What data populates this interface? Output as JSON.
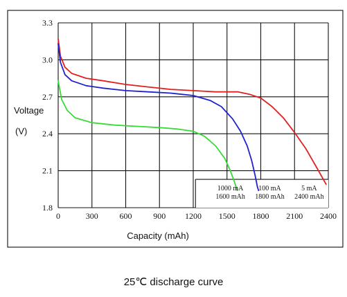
{
  "chart_data": {
    "type": "line",
    "ylabel_line1": "Voltage",
    "ylabel_line2": "(V)",
    "xlabel": "Capacity (mAh)",
    "xlim": [
      0,
      2400
    ],
    "ylim": [
      1.8,
      3.3
    ],
    "x_ticks": [
      0,
      300,
      600,
      900,
      1200,
      1500,
      1800,
      2100,
      2400
    ],
    "y_ticks": [
      "1.8",
      "2.1",
      "2.4",
      "2.7",
      "3.0",
      "3.3"
    ],
    "grid": true,
    "series": [
      {
        "color": "#e02020",
        "x": [
          0,
          20,
          60,
          120,
          250,
          400,
          600,
          800,
          1000,
          1200,
          1400,
          1600,
          1700,
          1800,
          1900,
          2000,
          2100,
          2200,
          2300,
          2380
        ],
        "y": [
          3.17,
          3.03,
          2.94,
          2.89,
          2.85,
          2.83,
          2.8,
          2.78,
          2.76,
          2.75,
          2.74,
          2.74,
          2.72,
          2.69,
          2.62,
          2.53,
          2.41,
          2.28,
          2.12,
          1.99
        ]
      },
      {
        "color": "#2020d0",
        "x": [
          0,
          20,
          60,
          120,
          250,
          400,
          600,
          800,
          1000,
          1200,
          1350,
          1450,
          1550,
          1620,
          1680,
          1720,
          1750,
          1770,
          1780
        ],
        "y": [
          3.13,
          2.98,
          2.88,
          2.83,
          2.79,
          2.77,
          2.75,
          2.74,
          2.73,
          2.71,
          2.67,
          2.62,
          2.52,
          2.42,
          2.3,
          2.18,
          2.06,
          1.97,
          1.94
        ]
      },
      {
        "color": "#33dd33",
        "x": [
          0,
          30,
          80,
          150,
          300,
          500,
          700,
          900,
          1050,
          1200,
          1300,
          1400,
          1480,
          1530,
          1570,
          1590
        ],
        "y": [
          2.83,
          2.68,
          2.59,
          2.53,
          2.49,
          2.47,
          2.46,
          2.45,
          2.44,
          2.42,
          2.38,
          2.3,
          2.2,
          2.1,
          2.0,
          1.94
        ]
      }
    ],
    "legend": [
      {
        "line1": "1000 mA",
        "line2": "1600 mAh"
      },
      {
        "line1": "100 mA",
        "line2": "1800 mAh"
      },
      {
        "line1": "5 mA",
        "line2": "2400 mAh"
      }
    ]
  },
  "caption": "25℃ discharge curve"
}
